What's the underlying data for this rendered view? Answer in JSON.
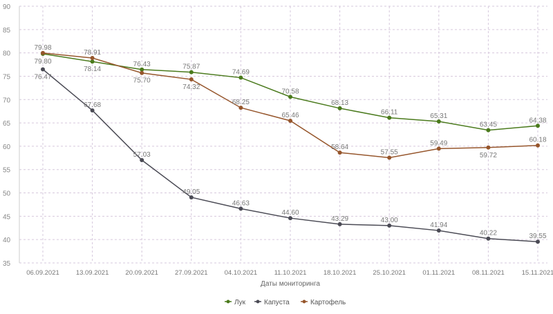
{
  "chart_data": {
    "type": "line",
    "title": "",
    "xlabel": "Даты мониторинга",
    "ylabel": "",
    "ylim": [
      35,
      90
    ],
    "yticks": [
      35,
      40,
      45,
      50,
      55,
      60,
      65,
      70,
      75,
      80,
      85,
      90
    ],
    "grid": true,
    "legend_position": "bottom-center",
    "categories": [
      "06.09.2021",
      "13.09.2021",
      "20.09.2021",
      "27.09.2021",
      "04.10.2021",
      "11.10.2021",
      "18.10.2021",
      "25.10.2021",
      "01.11.2021",
      "08.11.2021",
      "15.11.2021"
    ],
    "series": [
      {
        "name": "Лук",
        "color": "#4a7a1c",
        "values": [
          79.8,
          78.14,
          76.43,
          75.87,
          74.69,
          70.58,
          68.13,
          66.11,
          65.31,
          63.45,
          64.38
        ]
      },
      {
        "name": "Капуста",
        "color": "#4b4b55",
        "values": [
          76.47,
          67.68,
          57.03,
          49.05,
          46.63,
          44.6,
          43.29,
          43.0,
          41.94,
          40.22,
          39.55
        ]
      },
      {
        "name": "Картофель",
        "color": "#96562c",
        "values": [
          79.98,
          78.91,
          75.7,
          74.32,
          68.25,
          65.46,
          58.64,
          57.55,
          59.49,
          59.72,
          60.18
        ]
      }
    ]
  }
}
